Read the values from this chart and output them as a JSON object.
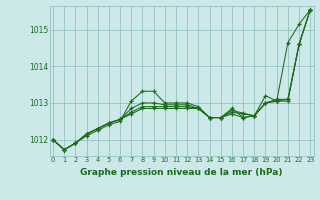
{
  "title": "",
  "xlabel": "Graphe pression niveau de la mer (hPa)",
  "bg_color": "#cce8e8",
  "line_color": "#1a6b1a",
  "grid_color": "#88bbbb",
  "xlabel_color": "#1a6b1a",
  "ylim": [
    1011.55,
    1015.65
  ],
  "xlim": [
    -0.3,
    23.3
  ],
  "yticks": [
    1012,
    1013,
    1014,
    1015
  ],
  "xticks": [
    0,
    1,
    2,
    3,
    4,
    5,
    6,
    7,
    8,
    9,
    10,
    11,
    12,
    13,
    14,
    15,
    16,
    17,
    18,
    19,
    20,
    21,
    22,
    23
  ],
  "series": [
    [
      1012.0,
      1011.72,
      1011.9,
      1012.1,
      1012.25,
      1012.4,
      1012.5,
      1013.05,
      1013.32,
      1013.32,
      1013.0,
      1013.0,
      1013.0,
      1012.9,
      1012.6,
      1012.6,
      1012.85,
      1012.6,
      1012.65,
      1013.2,
      1013.05,
      1014.65,
      1015.15,
      1015.55
    ],
    [
      1012.0,
      1011.72,
      1011.9,
      1012.15,
      1012.3,
      1012.45,
      1012.55,
      1012.85,
      1013.0,
      1013.0,
      1012.95,
      1012.95,
      1012.95,
      1012.85,
      1012.6,
      1012.6,
      1012.7,
      1012.6,
      1012.65,
      1013.0,
      1013.05,
      1013.05,
      1014.6,
      1015.55
    ],
    [
      1012.0,
      1011.72,
      1011.9,
      1012.15,
      1012.3,
      1012.45,
      1012.55,
      1012.75,
      1012.9,
      1012.9,
      1012.9,
      1012.9,
      1012.9,
      1012.85,
      1012.6,
      1012.6,
      1012.75,
      1012.7,
      1012.65,
      1013.0,
      1013.05,
      1013.1,
      1014.6,
      1015.55
    ],
    [
      1012.0,
      1011.72,
      1011.9,
      1012.15,
      1012.3,
      1012.45,
      1012.55,
      1012.7,
      1012.85,
      1012.85,
      1012.85,
      1012.85,
      1012.85,
      1012.85,
      1012.6,
      1012.6,
      1012.8,
      1012.72,
      1012.65,
      1013.0,
      1013.1,
      1013.1,
      1014.6,
      1015.55
    ]
  ]
}
